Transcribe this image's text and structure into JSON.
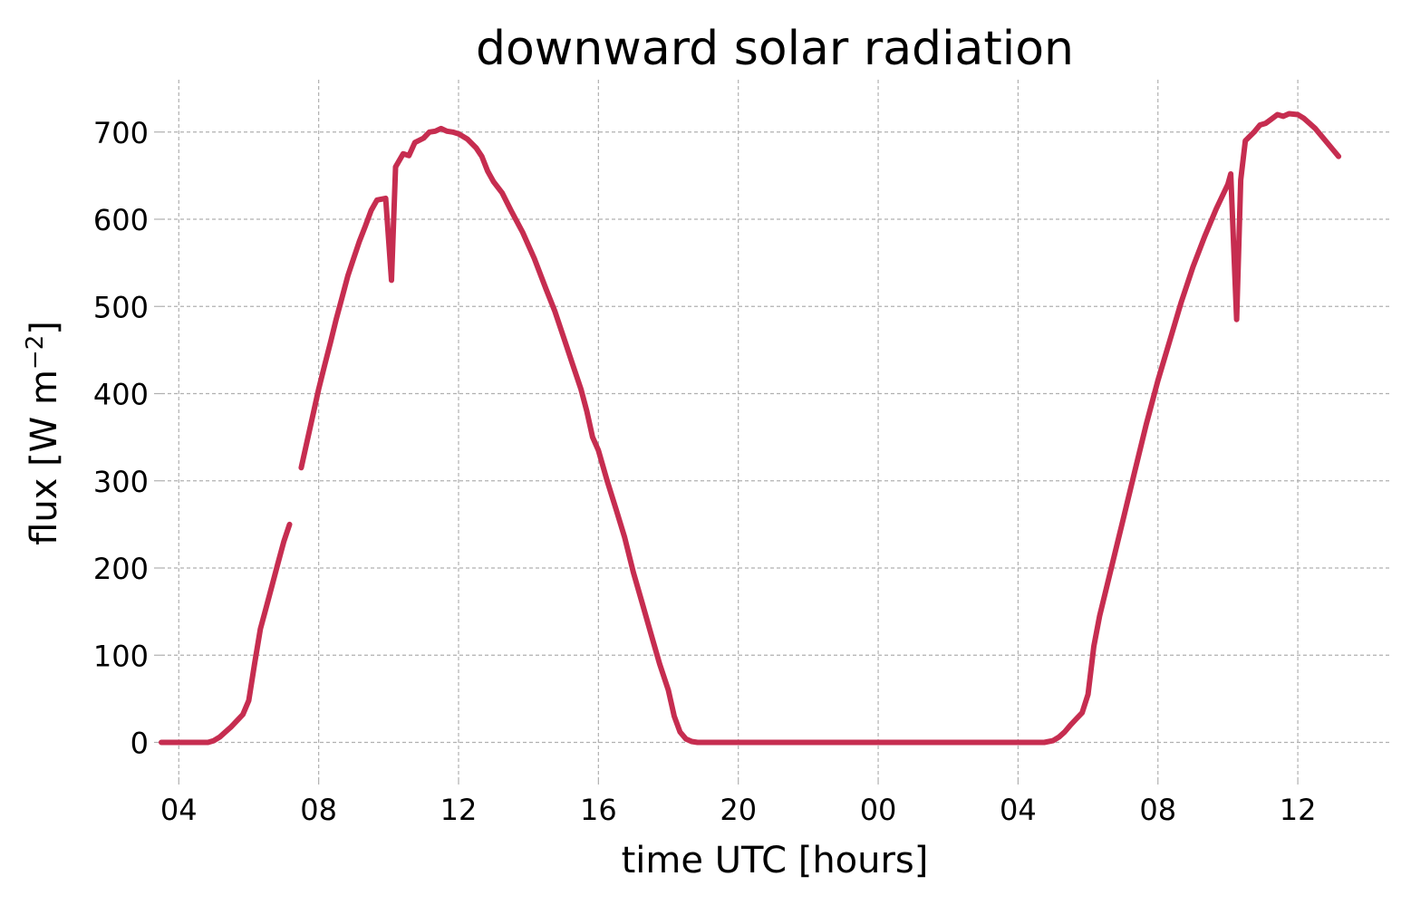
{
  "chart_data": {
    "type": "line",
    "title": "downward solar radiation",
    "xlabel": "time UTC [hours]",
    "ylabel": "flux [W m",
    "ylabel_sup": "−2",
    "ylabel_close": "]",
    "x_unit": "hours",
    "xlim": [
      "2023-06-01T03:30",
      "2023-06-02T14:40"
    ],
    "ylim": [
      -40,
      760
    ],
    "x_ticks": [
      {
        "x": "2023-06-01T04:00",
        "label": "04"
      },
      {
        "x": "2023-06-01T08:00",
        "label": "08"
      },
      {
        "x": "2023-06-01T12:00",
        "label": "12"
      },
      {
        "x": "2023-06-01T16:00",
        "label": "16"
      },
      {
        "x": "2023-06-01T20:00",
        "label": "20"
      },
      {
        "x": "2023-06-02T00:00",
        "label": "00"
      },
      {
        "x": "2023-06-02T04:00",
        "label": "04"
      },
      {
        "x": "2023-06-02T08:00",
        "label": "08"
      },
      {
        "x": "2023-06-02T12:00",
        "label": "12"
      }
    ],
    "y_ticks": [
      {
        "y": 0,
        "label": "0"
      },
      {
        "y": 100,
        "label": "100"
      },
      {
        "y": 200,
        "label": "200"
      },
      {
        "y": 300,
        "label": "300"
      },
      {
        "y": 400,
        "label": "400"
      },
      {
        "y": 500,
        "label": "500"
      },
      {
        "y": 600,
        "label": "600"
      },
      {
        "y": 700,
        "label": "700"
      }
    ],
    "grid": true,
    "series": [
      {
        "color": "#c62d50",
        "points": [
          [
            "2023-06-01T03:30",
            0
          ],
          [
            "2023-06-01T04:00",
            0
          ],
          [
            "2023-06-01T04:30",
            0
          ],
          [
            "2023-06-01T04:50",
            0
          ],
          [
            "2023-06-01T05:00",
            2
          ],
          [
            "2023-06-01T05:10",
            6
          ],
          [
            "2023-06-01T05:20",
            12
          ],
          [
            "2023-06-01T05:30",
            18
          ],
          [
            "2023-06-01T05:40",
            25
          ],
          [
            "2023-06-01T05:50",
            32
          ],
          [
            "2023-06-01T06:00",
            48
          ],
          [
            "2023-06-01T06:10",
            90
          ],
          [
            "2023-06-01T06:20",
            130
          ],
          [
            "2023-06-01T06:30",
            155
          ],
          [
            "2023-06-01T06:40",
            180
          ],
          [
            "2023-06-01T06:50",
            205
          ],
          [
            "2023-06-01T07:00",
            230
          ],
          [
            "2023-06-01T07:10",
            250
          ],
          null,
          [
            "2023-06-01T07:30",
            315
          ],
          [
            "2023-06-01T07:40",
            345
          ],
          [
            "2023-06-01T07:50",
            375
          ],
          [
            "2023-06-01T08:00",
            405
          ],
          [
            "2023-06-01T08:10",
            432
          ],
          [
            "2023-06-01T08:20",
            458
          ],
          [
            "2023-06-01T08:30",
            485
          ],
          [
            "2023-06-01T08:40",
            510
          ],
          [
            "2023-06-01T08:50",
            535
          ],
          [
            "2023-06-01T09:00",
            555
          ],
          [
            "2023-06-01T09:10",
            575
          ],
          [
            "2023-06-01T09:20",
            592
          ],
          [
            "2023-06-01T09:30",
            610
          ],
          [
            "2023-06-01T09:40",
            622
          ],
          [
            "2023-06-01T09:55",
            624
          ],
          [
            "2023-06-01T10:05",
            530
          ],
          [
            "2023-06-01T10:12",
            660
          ],
          [
            "2023-06-01T10:25",
            675
          ],
          [
            "2023-06-01T10:35",
            673
          ],
          [
            "2023-06-01T10:45",
            688
          ],
          [
            "2023-06-01T11:00",
            693
          ],
          [
            "2023-06-01T11:10",
            700
          ],
          [
            "2023-06-01T11:20",
            701
          ],
          [
            "2023-06-01T11:30",
            704
          ],
          [
            "2023-06-01T11:40",
            701
          ],
          [
            "2023-06-01T11:50",
            700
          ],
          [
            "2023-06-01T12:00",
            698
          ],
          [
            "2023-06-01T12:15",
            692
          ],
          [
            "2023-06-01T12:30",
            682
          ],
          [
            "2023-06-01T12:40",
            672
          ],
          [
            "2023-06-01T12:50",
            655
          ],
          [
            "2023-06-01T13:00",
            643
          ],
          [
            "2023-06-01T13:15",
            630
          ],
          [
            "2023-06-01T13:30",
            610
          ],
          [
            "2023-06-01T13:50",
            585
          ],
          [
            "2023-06-01T14:10",
            555
          ],
          [
            "2023-06-01T14:30",
            520
          ],
          [
            "2023-06-01T14:45",
            495
          ],
          [
            "2023-06-01T15:00",
            465
          ],
          [
            "2023-06-01T15:15",
            435
          ],
          [
            "2023-06-01T15:30",
            405
          ],
          [
            "2023-06-01T15:40",
            380
          ],
          [
            "2023-06-01T15:50",
            350
          ],
          [
            "2023-06-01T16:00",
            335
          ],
          [
            "2023-06-01T16:15",
            300
          ],
          [
            "2023-06-01T16:30",
            268
          ],
          [
            "2023-06-01T16:45",
            235
          ],
          [
            "2023-06-01T17:00",
            195
          ],
          [
            "2023-06-01T17:15",
            160
          ],
          [
            "2023-06-01T17:30",
            125
          ],
          [
            "2023-06-01T17:45",
            90
          ],
          [
            "2023-06-01T18:00",
            60
          ],
          [
            "2023-06-01T18:10",
            30
          ],
          [
            "2023-06-01T18:20",
            12
          ],
          [
            "2023-06-01T18:30",
            4
          ],
          [
            "2023-06-01T18:40",
            1
          ],
          [
            "2023-06-01T18:50",
            0
          ],
          [
            "2023-06-01T20:00",
            0
          ],
          [
            "2023-06-02T00:00",
            0
          ],
          [
            "2023-06-02T04:00",
            0
          ],
          [
            "2023-06-02T04:45",
            0
          ],
          [
            "2023-06-02T05:00",
            2
          ],
          [
            "2023-06-02T05:10",
            6
          ],
          [
            "2023-06-02T05:20",
            12
          ],
          [
            "2023-06-02T05:30",
            20
          ],
          [
            "2023-06-02T05:40",
            27
          ],
          [
            "2023-06-02T05:50",
            34
          ],
          [
            "2023-06-02T06:00",
            55
          ],
          [
            "2023-06-02T06:10",
            110
          ],
          [
            "2023-06-02T06:20",
            145
          ],
          [
            "2023-06-02T06:40",
            200
          ],
          [
            "2023-06-02T07:00",
            255
          ],
          [
            "2023-06-02T07:20",
            310
          ],
          [
            "2023-06-02T07:40",
            365
          ],
          [
            "2023-06-02T08:00",
            415
          ],
          [
            "2023-06-02T08:20",
            460
          ],
          [
            "2023-06-02T08:40",
            505
          ],
          [
            "2023-06-02T09:00",
            545
          ],
          [
            "2023-06-02T09:20",
            580
          ],
          [
            "2023-06-02T09:40",
            612
          ],
          [
            "2023-06-02T10:00",
            640
          ],
          [
            "2023-06-02T10:05",
            652
          ],
          [
            "2023-06-02T10:15",
            485
          ],
          [
            "2023-06-02T10:22",
            645
          ],
          [
            "2023-06-02T10:30",
            690
          ],
          [
            "2023-06-02T10:45",
            700
          ],
          [
            "2023-06-02T10:55",
            708
          ],
          [
            "2023-06-02T11:05",
            710
          ],
          [
            "2023-06-02T11:15",
            715
          ],
          [
            "2023-06-02T11:25",
            720
          ],
          [
            "2023-06-02T11:35",
            718
          ],
          [
            "2023-06-02T11:45",
            721
          ],
          [
            "2023-06-02T12:00",
            720
          ],
          [
            "2023-06-02T12:10",
            716
          ],
          [
            "2023-06-02T12:20",
            710
          ],
          [
            "2023-06-02T12:30",
            704
          ],
          [
            "2023-06-02T12:40",
            696
          ],
          [
            "2023-06-02T12:50",
            688
          ],
          [
            "2023-06-02T13:00",
            680
          ],
          [
            "2023-06-02T13:10",
            672
          ]
        ]
      }
    ]
  }
}
